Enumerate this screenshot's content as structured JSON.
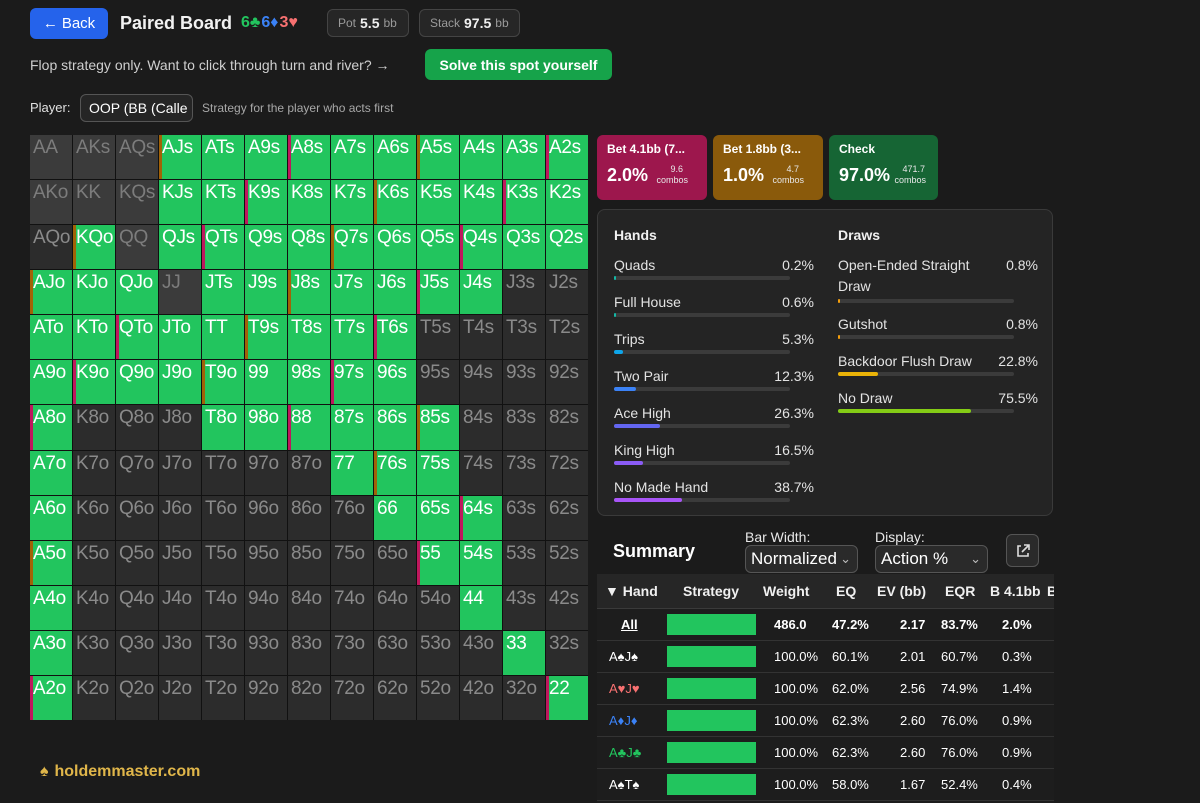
{
  "header": {
    "back_label": "Back",
    "title": "Paired Board",
    "board": [
      {
        "text": "6♣",
        "color": "#22c55e"
      },
      {
        "text": "6♦",
        "color": "#3b82f6"
      },
      {
        "text": "3♥",
        "color": "#f87171"
      }
    ],
    "pot_label": "Pot",
    "pot_value": "5.5",
    "pot_unit": "bb",
    "stack_label": "Stack",
    "stack_value": "97.5",
    "stack_unit": "bb"
  },
  "note": "Flop strategy only. Want to click through turn and river? →",
  "solve_label": "Solve this spot yourself",
  "player": {
    "label": "Player:",
    "value": "OOP (BB (Calle",
    "help": "Strategy for the player who acts first"
  },
  "colors": {
    "green": "#22c55e",
    "bet_large": "#be185d",
    "bet_small": "#a16207",
    "check": "#15803d"
  },
  "grid": {
    "rows": [
      [
        "AA",
        "AKs",
        "AQs",
        "AJs",
        "ATs",
        "A9s",
        "A8s",
        "A7s",
        "A6s",
        "A5s",
        "A4s",
        "A3s",
        "A2s"
      ],
      [
        "AKo",
        "KK",
        "KQs",
        "KJs",
        "KTs",
        "K9s",
        "K8s",
        "K7s",
        "K6s",
        "K5s",
        "K4s",
        "K3s",
        "K2s"
      ],
      [
        "AQo",
        "KQo",
        "QQ",
        "QJs",
        "QTs",
        "Q9s",
        "Q8s",
        "Q7s",
        "Q6s",
        "Q5s",
        "Q4s",
        "Q3s",
        "Q2s"
      ],
      [
        "AJo",
        "KJo",
        "QJo",
        "JJ",
        "JTs",
        "J9s",
        "J8s",
        "J7s",
        "J6s",
        "J5s",
        "J4s",
        "J3s",
        "J2s"
      ],
      [
        "ATo",
        "KTo",
        "QTo",
        "JTo",
        "TT",
        "T9s",
        "T8s",
        "T7s",
        "T6s",
        "T5s",
        "T4s",
        "T3s",
        "T2s"
      ],
      [
        "A9o",
        "K9o",
        "Q9o",
        "J9o",
        "T9o",
        "99",
        "98s",
        "97s",
        "96s",
        "95s",
        "94s",
        "93s",
        "92s"
      ],
      [
        "A8o",
        "K8o",
        "Q8o",
        "J8o",
        "T8o",
        "98o",
        "88",
        "87s",
        "86s",
        "85s",
        "84s",
        "83s",
        "82s"
      ],
      [
        "A7o",
        "K7o",
        "Q7o",
        "J7o",
        "T7o",
        "97o",
        "87o",
        "77",
        "76s",
        "75s",
        "74s",
        "73s",
        "72s"
      ],
      [
        "A6o",
        "K6o",
        "Q6o",
        "J6o",
        "T6o",
        "96o",
        "86o",
        "76o",
        "66",
        "65s",
        "64s",
        "63s",
        "62s"
      ],
      [
        "A5o",
        "K5o",
        "Q5o",
        "J5o",
        "T5o",
        "95o",
        "85o",
        "75o",
        "65o",
        "55",
        "54s",
        "53s",
        "52s"
      ],
      [
        "A4o",
        "K4o",
        "Q4o",
        "J4o",
        "T4o",
        "94o",
        "84o",
        "74o",
        "64o",
        "54o",
        "44",
        "43s",
        "42s"
      ],
      [
        "A3o",
        "K3o",
        "Q3o",
        "J3o",
        "T3o",
        "93o",
        "83o",
        "73o",
        "63o",
        "53o",
        "43o",
        "33",
        "32s"
      ],
      [
        "A2o",
        "K2o",
        "Q2o",
        "J2o",
        "T2o",
        "92o",
        "82o",
        "72o",
        "62o",
        "52o",
        "42o",
        "32o",
        "22"
      ]
    ],
    "states": [
      [
        "d",
        "d",
        "d",
        "g",
        "g",
        "g",
        "g",
        "g",
        "g",
        "g",
        "g",
        "g",
        "g"
      ],
      [
        "d",
        "d",
        "d",
        "g",
        "g",
        "g",
        "g",
        "g",
        "g",
        "g",
        "g",
        "g",
        "g"
      ],
      [
        "n",
        "g",
        "d",
        "g",
        "g",
        "g",
        "g",
        "g",
        "g",
        "g",
        "g",
        "g",
        "g"
      ],
      [
        "g",
        "g",
        "g",
        "d",
        "g",
        "g",
        "g",
        "g",
        "g",
        "g",
        "g",
        "n",
        "n"
      ],
      [
        "g",
        "g",
        "g",
        "g",
        "g",
        "g",
        "g",
        "g",
        "g",
        "n",
        "n",
        "n",
        "n"
      ],
      [
        "g",
        "g",
        "g",
        "g",
        "g",
        "g",
        "g",
        "g",
        "g",
        "n",
        "n",
        "n",
        "n"
      ],
      [
        "g",
        "n",
        "n",
        "n",
        "g",
        "g",
        "g",
        "g",
        "g",
        "g",
        "n",
        "n",
        "n"
      ],
      [
        "g",
        "n",
        "n",
        "n",
        "n",
        "n",
        "n",
        "g",
        "g",
        "g",
        "n",
        "n",
        "n"
      ],
      [
        "g",
        "n",
        "n",
        "n",
        "n",
        "n",
        "n",
        "n",
        "g",
        "g",
        "g",
        "n",
        "n"
      ],
      [
        "g",
        "n",
        "n",
        "n",
        "n",
        "n",
        "n",
        "n",
        "n",
        "g",
        "g",
        "n",
        "n"
      ],
      [
        "g",
        "n",
        "n",
        "n",
        "n",
        "n",
        "n",
        "n",
        "n",
        "n",
        "g",
        "n",
        "n"
      ],
      [
        "g",
        "n",
        "n",
        "n",
        "n",
        "n",
        "n",
        "n",
        "n",
        "n",
        "n",
        "g",
        "n"
      ],
      [
        "g",
        "n",
        "n",
        "n",
        "n",
        "n",
        "n",
        "n",
        "n",
        "n",
        "n",
        "n",
        "g"
      ]
    ]
  },
  "actions": [
    {
      "label": "Bet 4.1bb (7...",
      "pct": "2.0%",
      "combos": "9.6",
      "combos_label": "combos",
      "color": "#9d174d"
    },
    {
      "label": "Bet 1.8bb (3...",
      "pct": "1.0%",
      "combos": "4.7",
      "combos_label": "combos",
      "color": "#8a5a0b"
    },
    {
      "label": "Check",
      "pct": "97.0%",
      "combos": "471.7",
      "combos_label": "combos",
      "color": "#166534"
    }
  ],
  "stats": {
    "hands_title": "Hands",
    "hands": [
      {
        "label": "Quads",
        "value": "0.2%",
        "frac": 0.002,
        "color": "#14b8a6"
      },
      {
        "label": "Full House",
        "value": "0.6%",
        "frac": 0.006,
        "color": "#14b8a6"
      },
      {
        "label": "Trips",
        "value": "5.3%",
        "frac": 0.053,
        "color": "#0ea5e9"
      },
      {
        "label": "Two Pair",
        "value": "12.3%",
        "frac": 0.123,
        "color": "#3b82f6"
      },
      {
        "label": "Ace High",
        "value": "26.3%",
        "frac": 0.263,
        "color": "#6366f1"
      },
      {
        "label": "King High",
        "value": "16.5%",
        "frac": 0.165,
        "color": "#8b5cf6"
      },
      {
        "label": "No Made Hand",
        "value": "38.7%",
        "frac": 0.387,
        "color": "#a855f7"
      }
    ],
    "draws_title": "Draws",
    "draws": [
      {
        "label": "Open-Ended Straight",
        "label2": "Draw",
        "value": "0.8%",
        "frac": 0.008,
        "color": "#f59e0b"
      },
      {
        "label": "Gutshot",
        "label2": "",
        "value": "0.8%",
        "frac": 0.008,
        "color": "#f59e0b"
      },
      {
        "label": "Backdoor Flush Draw",
        "label2": "",
        "value": "22.8%",
        "frac": 0.228,
        "color": "#eab308"
      },
      {
        "label": "No Draw",
        "label2": "",
        "value": "75.5%",
        "frac": 0.755,
        "color": "#84cc16"
      }
    ]
  },
  "summary": {
    "title": "Summary",
    "bar_width_label": "Bar Width:",
    "bar_width_value": "Normalized",
    "display_label": "Display:",
    "display_value": "Action %",
    "columns": [
      "▼ Hand",
      "Strategy",
      "Weight",
      "EQ",
      "EV (bb)",
      "EQR",
      "B 4.1bb",
      "B"
    ],
    "rows": [
      {
        "hand": "All",
        "cards": [],
        "strategy": 1.0,
        "weight": "486.0",
        "eq": "47.2%",
        "ev": "2.17",
        "eqr": "83.7%",
        "b41": "2.0%"
      },
      {
        "hand": "",
        "cards": [
          {
            "t": "A♠",
            "c": "#ffffff"
          },
          {
            "t": "J♠",
            "c": "#ffffff"
          }
        ],
        "strategy": 1.0,
        "weight": "100.0%",
        "eq": "60.1%",
        "ev": "2.01",
        "eqr": "60.7%",
        "b41": "0.3%"
      },
      {
        "hand": "",
        "cards": [
          {
            "t": "A♥",
            "c": "#f87171"
          },
          {
            "t": "J♥",
            "c": "#f87171"
          }
        ],
        "strategy": 1.0,
        "weight": "100.0%",
        "eq": "62.0%",
        "ev": "2.56",
        "eqr": "74.9%",
        "b41": "1.4%"
      },
      {
        "hand": "",
        "cards": [
          {
            "t": "A♦",
            "c": "#3b82f6"
          },
          {
            "t": "J♦",
            "c": "#3b82f6"
          }
        ],
        "strategy": 1.0,
        "weight": "100.0%",
        "eq": "62.3%",
        "ev": "2.60",
        "eqr": "76.0%",
        "b41": "0.9%"
      },
      {
        "hand": "",
        "cards": [
          {
            "t": "A♣",
            "c": "#22c55e"
          },
          {
            "t": "J♣",
            "c": "#22c55e"
          }
        ],
        "strategy": 1.0,
        "weight": "100.0%",
        "eq": "62.3%",
        "ev": "2.60",
        "eqr": "76.0%",
        "b41": "0.9%"
      },
      {
        "hand": "",
        "cards": [
          {
            "t": "A♠",
            "c": "#ffffff"
          },
          {
            "t": "T♠",
            "c": "#ffffff"
          }
        ],
        "strategy": 1.0,
        "weight": "100.0%",
        "eq": "58.0%",
        "ev": "1.67",
        "eqr": "52.4%",
        "b41": "0.4%"
      }
    ]
  },
  "brand": "holdemmaster.com"
}
